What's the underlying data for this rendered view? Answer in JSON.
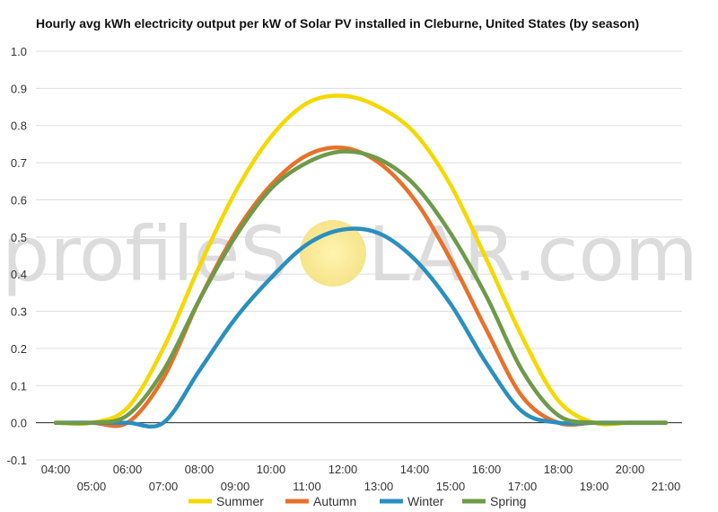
{
  "chart_data": {
    "type": "line",
    "title": "Hourly avg kWh electricity output per kW of Solar PV installed in Cleburne, United States (by season)",
    "xlabel": "",
    "ylabel": "",
    "ylim": [
      -0.1,
      1.0
    ],
    "yticks": [
      "-0.1",
      "0.0",
      "0.1",
      "0.2",
      "0.3",
      "0.4",
      "0.5",
      "0.6",
      "0.7",
      "0.8",
      "0.9",
      "1.0"
    ],
    "x": [
      "04:00",
      "05:00",
      "06:00",
      "07:00",
      "08:00",
      "09:00",
      "10:00",
      "11:00",
      "12:00",
      "13:00",
      "14:00",
      "15:00",
      "16:00",
      "17:00",
      "18:00",
      "19:00",
      "20:00",
      "21:00"
    ],
    "series": [
      {
        "name": "Summer",
        "color": "#f5d800",
        "values": [
          0.0,
          0.0,
          0.04,
          0.2,
          0.42,
          0.62,
          0.77,
          0.86,
          0.88,
          0.85,
          0.78,
          0.64,
          0.44,
          0.23,
          0.06,
          0.0,
          0.0,
          0.0
        ]
      },
      {
        "name": "Autumn",
        "color": "#e8712a",
        "values": [
          0.0,
          0.0,
          0.0,
          0.12,
          0.33,
          0.51,
          0.64,
          0.72,
          0.74,
          0.7,
          0.6,
          0.44,
          0.25,
          0.07,
          0.0,
          0.0,
          0.0,
          0.0
        ]
      },
      {
        "name": "Winter",
        "color": "#2a8fc0",
        "values": [
          0.0,
          0.0,
          0.0,
          0.0,
          0.14,
          0.28,
          0.39,
          0.48,
          0.52,
          0.51,
          0.44,
          0.32,
          0.16,
          0.03,
          0.0,
          0.0,
          0.0,
          0.0
        ]
      },
      {
        "name": "Spring",
        "color": "#6e9a4a",
        "values": [
          0.0,
          0.0,
          0.02,
          0.14,
          0.33,
          0.5,
          0.63,
          0.7,
          0.73,
          0.71,
          0.64,
          0.51,
          0.34,
          0.14,
          0.02,
          0.0,
          0.0,
          0.0
        ]
      }
    ],
    "grid": true,
    "legend": "bottom"
  },
  "watermark": {
    "left": "profileS",
    "right": "LAR.com"
  }
}
